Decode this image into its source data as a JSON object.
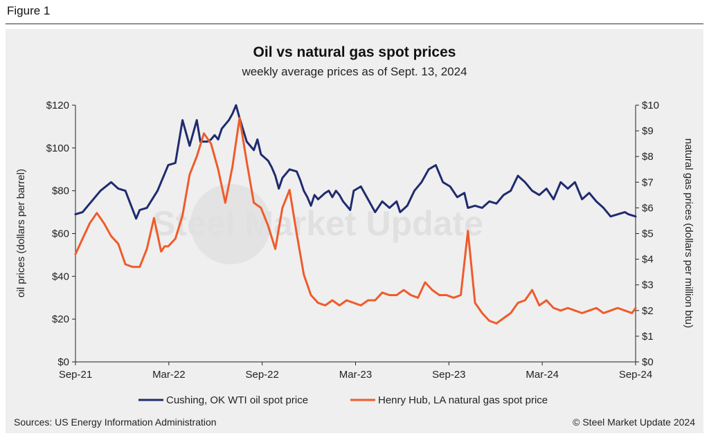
{
  "figure_label": "Figure 1",
  "source": "Sources: US Energy Information Administration",
  "copyright": "© Steel Market Update 2024",
  "watermark": "Steel Market Update",
  "colors": {
    "oil": "#1f2b6e",
    "gas": "#ef5b2b",
    "background": "#efefef"
  },
  "chart_data": {
    "type": "line",
    "title": "Oil vs natural gas spot prices",
    "subtitle": "weekly average prices as of Sept. 13, 2024",
    "xlabel": "",
    "ylabel": "oil prices (dollars per barrel)",
    "y2label": "natural gas prices (dollars per million btu)",
    "x_tick_labels": [
      "Sep-21",
      "Mar-22",
      "Sep-22",
      "Mar-23",
      "Sep-23",
      "Mar-24",
      "Sep-24"
    ],
    "ylim": [
      0,
      120
    ],
    "y_ticks": [
      0,
      20,
      40,
      60,
      80,
      100,
      120
    ],
    "y_tick_labels": [
      "$0",
      "$20",
      "$40",
      "$60",
      "$80",
      "$100",
      "$120"
    ],
    "y2lim": [
      0,
      10
    ],
    "y2_ticks": [
      0,
      1,
      2,
      3,
      4,
      5,
      6,
      7,
      8,
      9,
      10
    ],
    "y2_tick_labels": [
      "$0",
      "$1",
      "$2",
      "$3",
      "$4",
      "$5",
      "$6",
      "$7",
      "$8",
      "$9",
      "$10"
    ],
    "x_range_weeks": [
      0,
      157
    ],
    "series": [
      {
        "name": "Cushing, OK WTI oil spot price",
        "axis": "left",
        "weeks": [
          0,
          2,
          4,
          7,
          10,
          12,
          14,
          17,
          18,
          20,
          23,
          26,
          28,
          30,
          32,
          34,
          35,
          37,
          38,
          39,
          40,
          41,
          43,
          44,
          45,
          46,
          48,
          50,
          51,
          52,
          54,
          55,
          56,
          57,
          58,
          60,
          62,
          63,
          64,
          65,
          66,
          67,
          68,
          70,
          71,
          72,
          73,
          74,
          75,
          77,
          78,
          80,
          82,
          84,
          86,
          88,
          90,
          91,
          93,
          95,
          97,
          99,
          101,
          103,
          105,
          107,
          109,
          110,
          112,
          114,
          116,
          118,
          120,
          122,
          124,
          126,
          128,
          130,
          132,
          134,
          136,
          138,
          140,
          142,
          144,
          146,
          148,
          150,
          152,
          154,
          155,
          157
        ],
        "values": [
          69,
          70,
          74,
          80,
          84,
          81,
          80,
          67,
          71,
          72,
          80,
          92,
          93,
          113,
          101,
          113,
          103,
          103,
          104,
          106,
          104,
          109,
          113,
          116,
          120,
          114,
          103,
          99,
          104,
          97,
          94,
          91,
          87,
          81,
          86,
          90,
          89,
          85,
          80,
          77,
          73,
          78,
          76,
          79,
          80,
          77,
          80,
          78,
          75,
          71,
          80,
          82,
          76,
          70,
          75,
          72,
          75,
          70,
          73,
          80,
          84,
          90,
          92,
          84,
          82,
          77,
          79,
          72,
          73,
          72,
          75,
          74,
          78,
          80,
          87,
          84,
          80,
          78,
          81,
          76,
          84,
          81,
          84,
          76,
          79,
          75,
          72,
          68,
          69,
          70,
          69,
          68
        ],
        "color": "#1f2b6e"
      },
      {
        "name": "Henry Hub, LA natural gas spot price",
        "axis": "right",
        "weeks": [
          0,
          2,
          4,
          6,
          8,
          10,
          12,
          14,
          16,
          18,
          20,
          22,
          24,
          25,
          26,
          28,
          30,
          32,
          34,
          36,
          38,
          40,
          42,
          44,
          46,
          48,
          50,
          52,
          54,
          56,
          58,
          60,
          62,
          64,
          66,
          68,
          70,
          72,
          74,
          76,
          78,
          80,
          82,
          84,
          86,
          88,
          90,
          92,
          94,
          96,
          98,
          100,
          102,
          104,
          106,
          108,
          110,
          112,
          114,
          116,
          118,
          120,
          122,
          124,
          126,
          128,
          130,
          132,
          134,
          136,
          138,
          140,
          142,
          144,
          146,
          148,
          150,
          152,
          154,
          156,
          157
        ],
        "values": [
          4.2,
          4.8,
          5.4,
          5.8,
          5.4,
          4.9,
          4.6,
          3.8,
          3.7,
          3.7,
          4.4,
          5.6,
          4.3,
          4.5,
          4.5,
          4.8,
          5.7,
          7.3,
          8.0,
          8.9,
          8.5,
          7.5,
          6.2,
          7.6,
          9.5,
          7.8,
          6.2,
          6.0,
          5.3,
          4.4,
          6.0,
          6.7,
          5.0,
          3.4,
          2.6,
          2.3,
          2.2,
          2.4,
          2.2,
          2.4,
          2.3,
          2.2,
          2.4,
          2.4,
          2.7,
          2.6,
          2.6,
          2.8,
          2.6,
          2.5,
          3.1,
          2.8,
          2.6,
          2.6,
          2.5,
          2.6,
          5.1,
          2.3,
          1.9,
          1.6,
          1.5,
          1.7,
          1.9,
          2.3,
          2.4,
          2.8,
          2.2,
          2.4,
          2.1,
          2.0,
          2.1,
          2.0,
          1.9,
          2.0,
          2.1,
          1.9,
          2.0,
          2.1,
          2.0,
          1.9,
          2.1
        ],
        "color": "#ef5b2b"
      }
    ],
    "legend": [
      "Cushing, OK WTI oil spot price",
      "Henry Hub, LA natural gas spot price"
    ],
    "legend_position": "bottom",
    "grid": false
  }
}
